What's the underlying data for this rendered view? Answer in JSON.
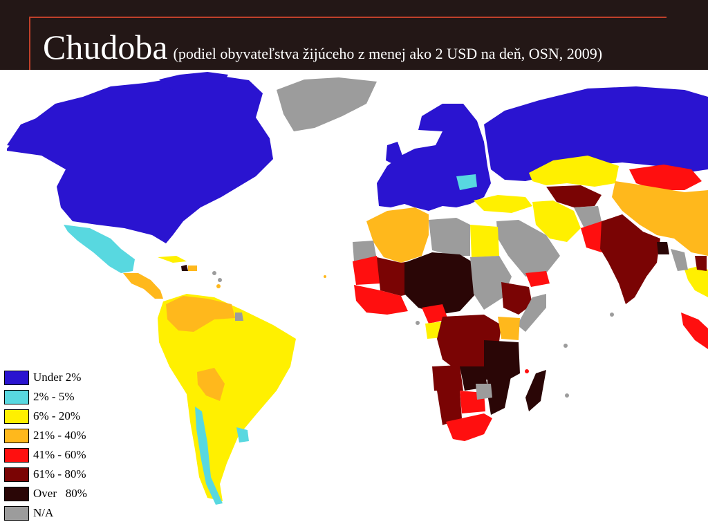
{
  "header": {
    "title": "Chudoba",
    "subtitle": "(podiel obyvateľstva žijúceho z menej ako 2 USD na deň, OSN, 2009)"
  },
  "colors": {
    "header_bg": "#231716",
    "accent_rule": "#c0402a",
    "under_2": "#2a14d0",
    "p2_5": "#58d8e0",
    "p6_20": "#fff000",
    "p21_40": "#ffb81c",
    "p41_60": "#ff0f0f",
    "p61_80": "#7a0404",
    "over_80": "#2a0606",
    "na": "#9c9c9c"
  },
  "legend": [
    {
      "label": "Under 2%",
      "color": "#2a14d0"
    },
    {
      "label": "2% - 5%",
      "color": "#58d8e0"
    },
    {
      "label": "6% - 20%",
      "color": "#fff000"
    },
    {
      "label": "21% - 40%",
      "color": "#ffb81c"
    },
    {
      "label": "41% - 60%",
      "color": "#ff0f0f"
    },
    {
      "label": "61% - 80%",
      "color": "#7a0404"
    },
    {
      "label": "Over   80%",
      "color": "#2a0606"
    },
    {
      "label": "N/A",
      "color": "#9c9c9c"
    }
  ]
}
